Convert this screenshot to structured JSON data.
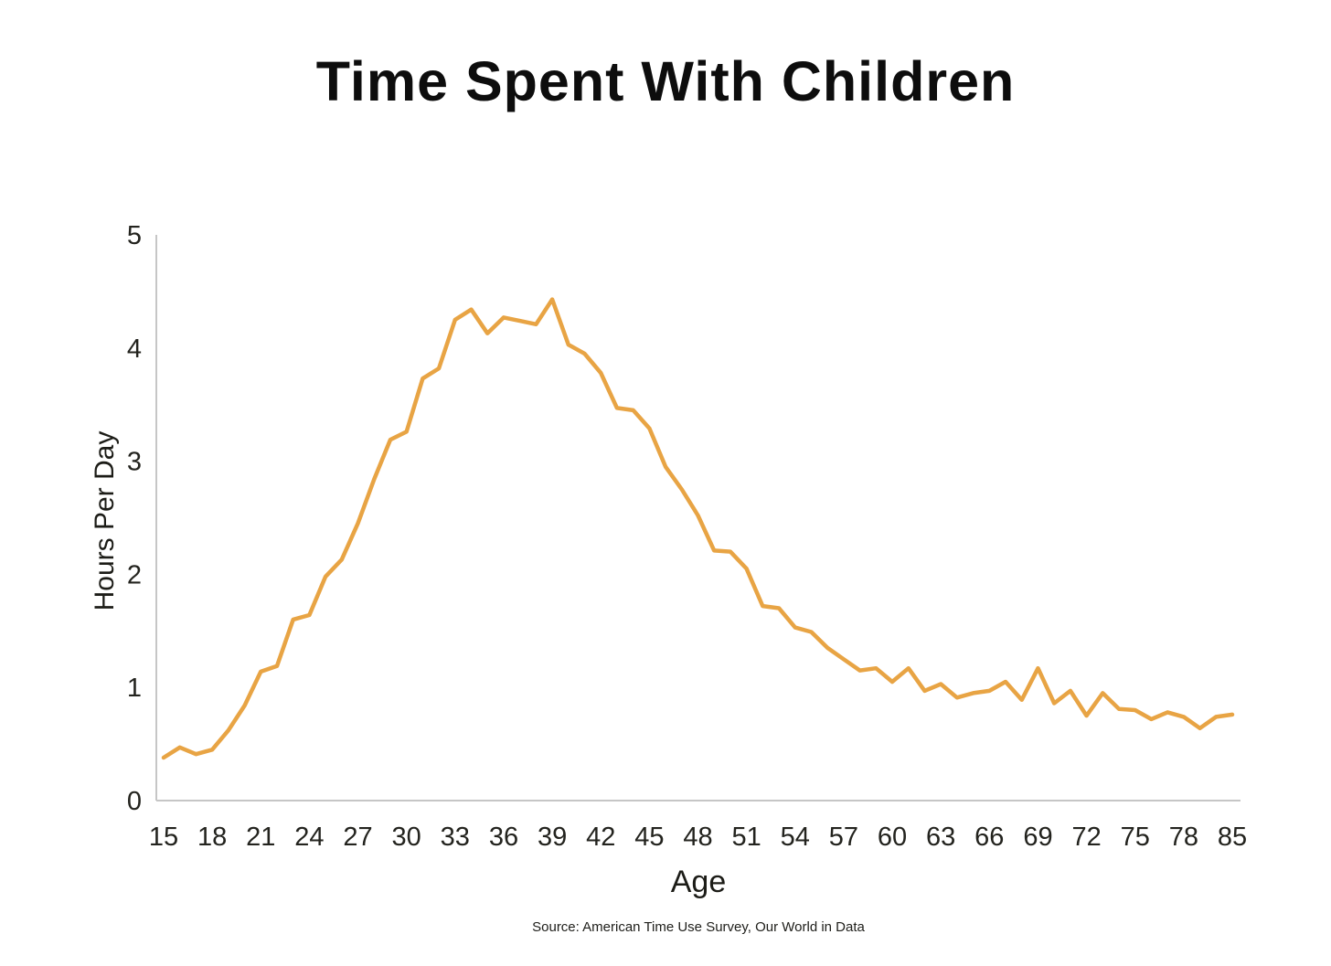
{
  "title": "Time Spent With Children",
  "source_note": "Source: American Time Use Survey, Our World in Data",
  "chart_data": {
    "type": "line",
    "title": "Time Spent With Children",
    "xlabel": "Age",
    "ylabel": "Hours Per Day",
    "x_tick_labels": [
      "15",
      "18",
      "21",
      "24",
      "27",
      "30",
      "33",
      "36",
      "39",
      "42",
      "45",
      "48",
      "51",
      "54",
      "57",
      "60",
      "63",
      "66",
      "69",
      "72",
      "75",
      "78",
      "85"
    ],
    "points_per_tick_interval": 3,
    "y_ticks": [
      "0",
      "1",
      "2",
      "3",
      "4",
      "5"
    ],
    "ylim": [
      0,
      5
    ],
    "grid": false,
    "legend_position": "none",
    "values": [
      0.38,
      0.47,
      0.41,
      0.45,
      0.62,
      0.84,
      1.14,
      1.19,
      1.6,
      1.64,
      1.98,
      2.13,
      2.45,
      2.84,
      3.19,
      3.26,
      3.73,
      3.82,
      4.25,
      4.34,
      4.13,
      4.27,
      4.24,
      4.21,
      4.43,
      4.03,
      3.95,
      3.78,
      3.47,
      3.45,
      3.29,
      2.95,
      2.75,
      2.52,
      2.21,
      2.2,
      2.05,
      1.72,
      1.7,
      1.53,
      1.49,
      1.35,
      1.25,
      1.15,
      1.17,
      1.05,
      1.17,
      0.97,
      1.03,
      0.91,
      0.95,
      0.97,
      1.05,
      0.89,
      1.17,
      0.86,
      0.97,
      0.75,
      0.95,
      0.81,
      0.8,
      0.72,
      0.78,
      0.74,
      0.64,
      0.74,
      0.76
    ],
    "line_color": "#E8A444",
    "axis_color": "#C6C6C6"
  }
}
